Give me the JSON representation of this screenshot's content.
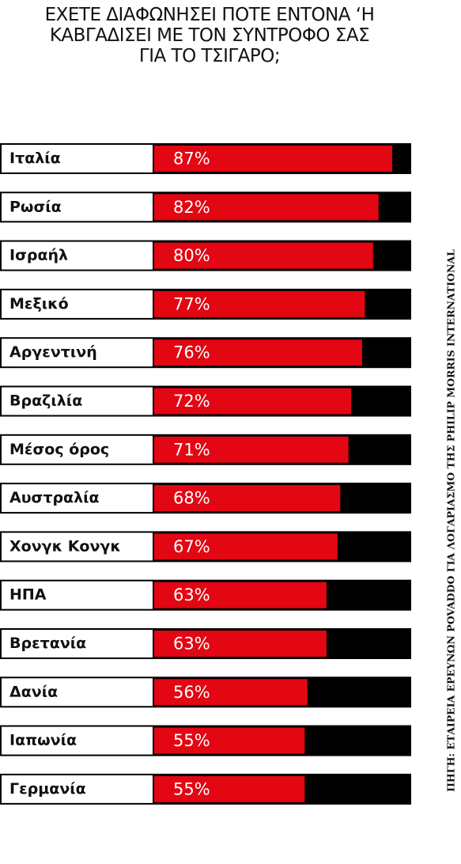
{
  "chart_data": {
    "type": "hbar",
    "title": "ΕΧΕΤΕ ΔΙΑΦΩΝΗΣΕΙ ΠΟΤΕ ΕΝΤΟΝΑ ‘Η ΚΑΒΓΑΔΙΣΕΙ ΜΕ ΤΟΝ ΣΥΝΤΡΟΦΟ ΣΑΣ ΓΙΑ ΤΟ ΤΣΙΓΑΡΟ;",
    "source": "ΠΗΓΗ: ΕΤΑΙΡΕΙΑ ΕΡΕΥΝΩΝ POVADDO ΓΙΑ ΛΟΓΑΡΙΑΣΜΟ ΤΗΣ PHILIP MORRIS INTERNATIONAL",
    "categories": [
      "Ιταλία",
      "Ρωσία",
      "Ισραήλ",
      "Μεξικό",
      "Αργεντινή",
      "Βραζιλία",
      "Μέσος όρος",
      "Αυστραλία",
      "Χονγκ Κονγκ",
      "ΗΠΑ",
      "Βρετανία",
      "Δανία",
      "Ιαπωνία",
      "Γερμανία"
    ],
    "values": [
      87,
      82,
      80,
      77,
      76,
      72,
      71,
      68,
      67,
      63,
      63,
      56,
      55,
      55
    ],
    "value_labels": [
      "87%",
      "82%",
      "80%",
      "77%",
      "76%",
      "72%",
      "71%",
      "68%",
      "67%",
      "63%",
      "63%",
      "56%",
      "55%",
      "55%"
    ],
    "color": "#e30613",
    "xlim": [
      0,
      100
    ]
  }
}
